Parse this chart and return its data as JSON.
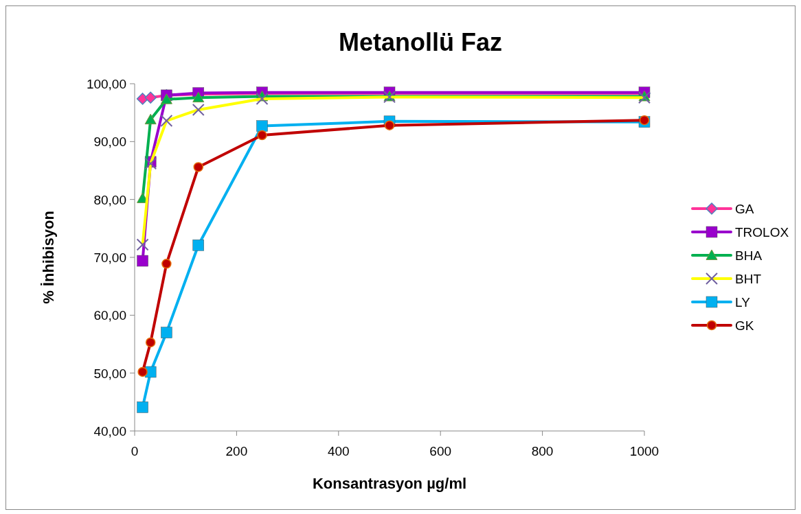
{
  "chart_data": {
    "type": "line",
    "title": "Metanollü Faz",
    "xlabel": "Konsantrasyon µg/ml",
    "ylabel": "% İnhibisyon",
    "x": [
      15.625,
      31.25,
      62.5,
      125,
      250,
      500,
      1000
    ],
    "xlim": [
      0,
      1000
    ],
    "xticks": [
      0,
      200,
      400,
      600,
      800,
      1000
    ],
    "ylim": [
      40,
      100
    ],
    "yticks": [
      {
        "value": 40,
        "label": "40,00"
      },
      {
        "value": 50,
        "label": "50,00"
      },
      {
        "value": 60,
        "label": "60,00"
      },
      {
        "value": 70,
        "label": "70,00"
      },
      {
        "value": 80,
        "label": "80,00"
      },
      {
        "value": 90,
        "label": "90,00"
      },
      {
        "value": 100,
        "label": "100,00"
      }
    ],
    "grid": false,
    "legend": "right",
    "series": [
      {
        "name": "GA",
        "color": "#ff3399",
        "marker": "diamond",
        "values": [
          97.4,
          97.6,
          98.0,
          98.2,
          98.3,
          98.3,
          98.3
        ]
      },
      {
        "name": "TROLOX",
        "color": "#9900cc",
        "marker": "square",
        "values": [
          69.4,
          86.5,
          98.0,
          98.4,
          98.5,
          98.5,
          98.5
        ]
      },
      {
        "name": "BHA",
        "color": "#00b050",
        "marker": "triangle",
        "values": [
          80.2,
          93.8,
          97.3,
          97.6,
          97.8,
          97.8,
          97.8
        ]
      },
      {
        "name": "BHT",
        "color": "#ffff00",
        "marker": "cross",
        "values": [
          72.2,
          86.2,
          93.6,
          95.5,
          97.4,
          97.7,
          97.6
        ]
      },
      {
        "name": "LY",
        "color": "#00b0f0",
        "marker": "square",
        "values": [
          44.1,
          50.2,
          57.0,
          72.1,
          92.7,
          93.5,
          93.4
        ]
      },
      {
        "name": "GK",
        "color": "#c00000",
        "marker": "circle",
        "values": [
          50.2,
          55.3,
          68.9,
          85.6,
          91.1,
          92.8,
          93.7
        ]
      }
    ]
  }
}
